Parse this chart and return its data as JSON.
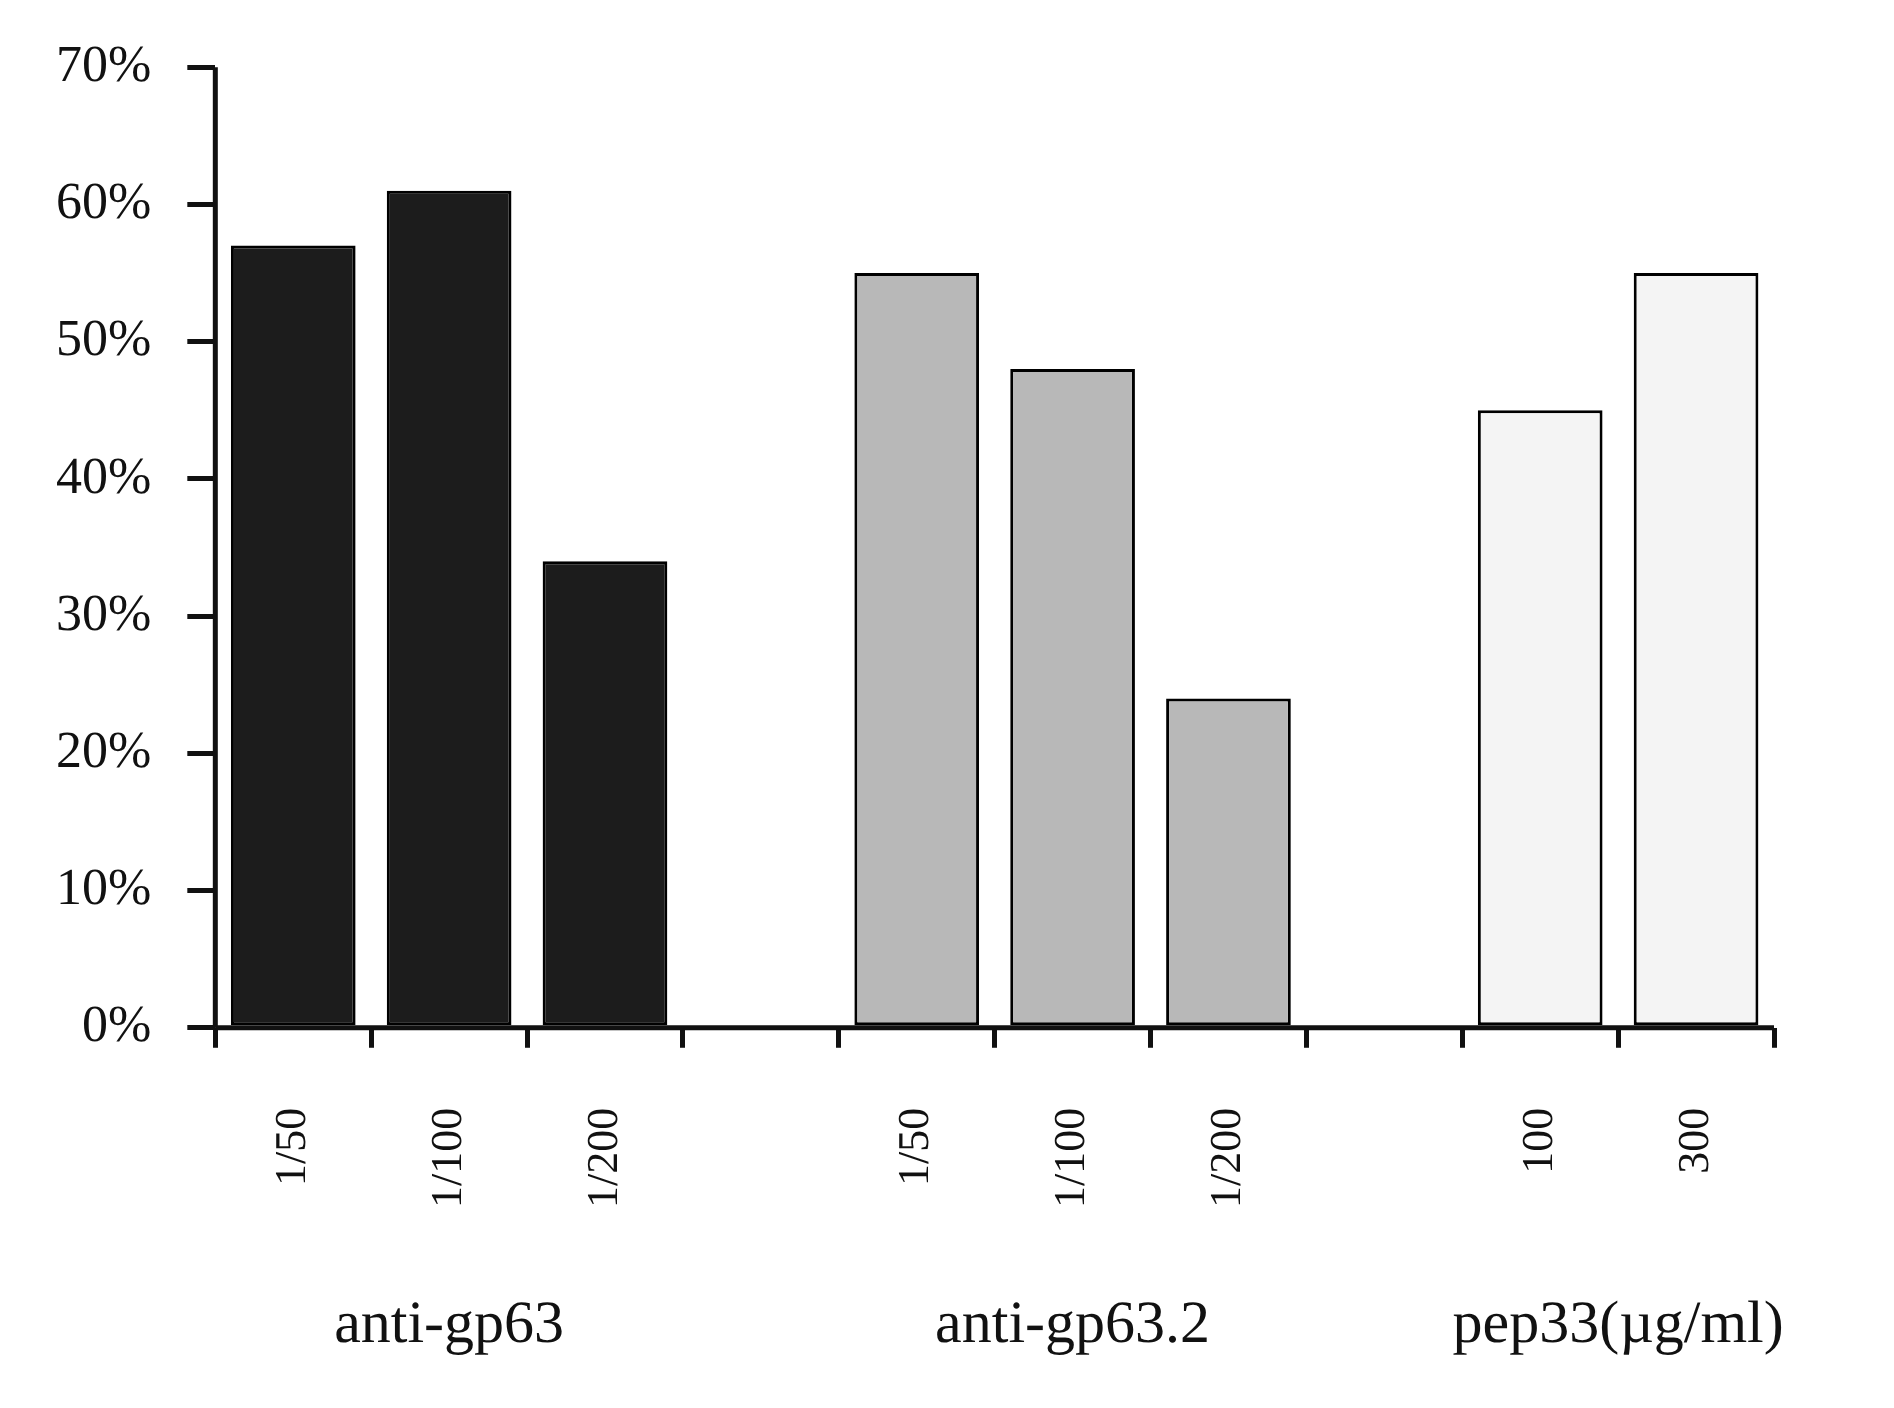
{
  "chart_data": {
    "type": "bar",
    "categories": [
      "1/50",
      "1/100",
      "1/200",
      null,
      "1/50",
      "1/100",
      "1/200",
      null,
      "100",
      "300"
    ],
    "values": [
      57,
      61,
      34,
      null,
      55,
      48,
      24,
      null,
      45,
      55
    ],
    "colors": [
      "#1c1c1c",
      "#1c1c1c",
      "#1c1c1c",
      null,
      "#b8b8b8",
      "#b8b8b8",
      "#b8b8b8",
      null,
      "#f4f4f4",
      "#f4f4f4"
    ],
    "ylim": [
      0,
      70
    ],
    "yticks": [
      {
        "value": 0,
        "label": "0%"
      },
      {
        "value": 10,
        "label": "10%"
      },
      {
        "value": 20,
        "label": "20%"
      },
      {
        "value": 30,
        "label": "30%"
      },
      {
        "value": 40,
        "label": "40%"
      },
      {
        "value": 50,
        "label": "50%"
      },
      {
        "value": 60,
        "label": "60%"
      },
      {
        "value": 70,
        "label": "70%"
      }
    ],
    "annotations": [
      "anti-gp63",
      "anti-gp63.2",
      "pep33(µg/ml)"
    ],
    "grid": false,
    "legend": false
  }
}
